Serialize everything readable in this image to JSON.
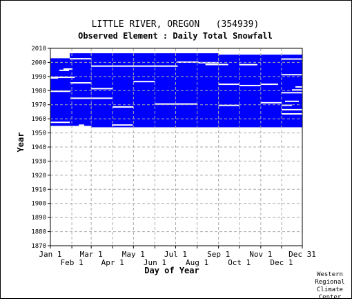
{
  "chart_data": {
    "type": "heatmap",
    "title": "LITTLE RIVER, OREGON   (354939)",
    "subtitle": "Observed Element : Daily Total Snowfall",
    "xlabel": "Day of Year",
    "ylabel": "Year",
    "ylim": [
      1870,
      2010
    ],
    "y_ticks": [
      2010,
      2000,
      1990,
      1980,
      1970,
      1960,
      1950,
      1940,
      1930,
      1920,
      1910,
      1900,
      1890,
      1880,
      1870
    ],
    "x_ticks_top": [
      {
        "day": 1,
        "label": "Jan 1"
      },
      {
        "day": 60,
        "label": "Mar 1"
      },
      {
        "day": 121,
        "label": "May 1"
      },
      {
        "day": 182,
        "label": "Jul 1"
      },
      {
        "day": 244,
        "label": "Sep 1"
      },
      {
        "day": 305,
        "label": "Nov 1"
      },
      {
        "day": 365,
        "label": "Dec 31"
      }
    ],
    "x_ticks_bottom": [
      {
        "day": 32,
        "label": "Feb 1"
      },
      {
        "day": 91,
        "label": "Apr 1"
      },
      {
        "day": 152,
        "label": "Jun 1"
      },
      {
        "day": 213,
        "label": "Aug 1"
      },
      {
        "day": 274,
        "label": "Oct 1"
      },
      {
        "day": 335,
        "label": "Dec 1"
      }
    ],
    "data_color": "#0000ff",
    "grid": true,
    "coverage_blocks": [
      {
        "start_day": 1,
        "end_day": 29,
        "year_start": 1955,
        "year_end": 2003
      },
      {
        "start_day": 29,
        "end_day": 60,
        "year_start": 1955,
        "year_end": 2006.5
      },
      {
        "start_day": 60,
        "end_day": 244,
        "year_start": 1954,
        "year_end": 2006.5
      },
      {
        "start_day": 244,
        "end_day": 365,
        "year_start": 1954,
        "year_end": 2005.5
      }
    ],
    "missing_segments": [
      {
        "year": 2003.5,
        "start_day": 1,
        "end_day": 29
      },
      {
        "year": 2002.6,
        "start_day": 29,
        "end_day": 60
      },
      {
        "year": 2002.4,
        "start_day": 335,
        "end_day": 365
      },
      {
        "year": 1998.5,
        "start_day": 225,
        "end_day": 258
      },
      {
        "year": 1997.4,
        "start_day": 60,
        "end_day": 185
      },
      {
        "year": 2000.2,
        "start_day": 184,
        "end_day": 215
      },
      {
        "year": 1999.8,
        "start_day": 215,
        "end_day": 244
      },
      {
        "year": 1998.4,
        "start_day": 274,
        "end_day": 300
      },
      {
        "year": 1995.3,
        "start_day": 20,
        "end_day": 33
      },
      {
        "year": 1994.4,
        "start_day": 14,
        "end_day": 28
      },
      {
        "year": 1991.3,
        "start_day": 335,
        "end_day": 365
      },
      {
        "year": 1989.4,
        "start_day": 1,
        "end_day": 36
      },
      {
        "year": 1989.0,
        "start_day": 1,
        "end_day": 12
      },
      {
        "year": 1986.4,
        "start_day": 121,
        "end_day": 152
      },
      {
        "year": 1985.5,
        "start_day": 30,
        "end_day": 60
      },
      {
        "year": 1984.5,
        "start_day": 244,
        "end_day": 274
      },
      {
        "year": 1983.6,
        "start_day": 274,
        "end_day": 305
      },
      {
        "year": 1984.5,
        "start_day": 305,
        "end_day": 330
      },
      {
        "year": 1982.6,
        "start_day": 355,
        "end_day": 365
      },
      {
        "year": 1981.4,
        "start_day": 60,
        "end_day": 91
      },
      {
        "year": 1980.5,
        "start_day": 350,
        "end_day": 365
      },
      {
        "year": 1979.5,
        "start_day": 1,
        "end_day": 30
      },
      {
        "year": 1978.5,
        "start_day": 335,
        "end_day": 365
      },
      {
        "year": 1974.6,
        "start_day": 30,
        "end_day": 90
      },
      {
        "year": 1972.4,
        "start_day": 340,
        "end_day": 360
      },
      {
        "year": 1971.4,
        "start_day": 305,
        "end_day": 335
      },
      {
        "year": 1970.5,
        "start_day": 152,
        "end_day": 213
      },
      {
        "year": 1969.5,
        "start_day": 244,
        "end_day": 274
      },
      {
        "year": 1969.6,
        "start_day": 335,
        "end_day": 350
      },
      {
        "year": 1968.4,
        "start_day": 91,
        "end_day": 121
      },
      {
        "year": 1966.5,
        "start_day": 335,
        "end_day": 365
      },
      {
        "year": 1963.5,
        "start_day": 335,
        "end_day": 365
      },
      {
        "year": 1957.5,
        "start_day": 1,
        "end_day": 29
      },
      {
        "year": 1955.5,
        "start_day": 42,
        "end_day": 50
      },
      {
        "year": 1955.6,
        "start_day": 90,
        "end_day": 120
      }
    ]
  },
  "credit": {
    "line1": "Western",
    "line2": "Regional",
    "line3": "Climate",
    "line4": "Center"
  }
}
